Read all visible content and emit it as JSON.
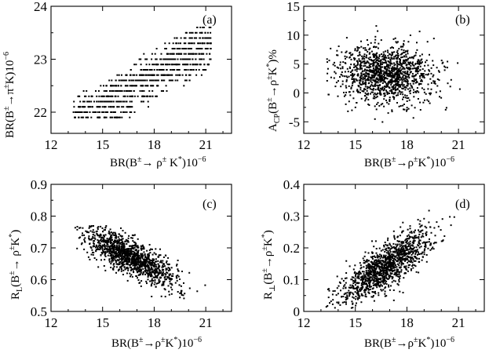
{
  "chart_data": [
    {
      "type": "scatter",
      "panel": "(a)",
      "xlabel": "BR(B^{±}→ρ^{±}K^{*})10^{-6}",
      "ylabel": "BR(B^{±}→π^{±}K)10^{-6}",
      "xlim": [
        12,
        22.5
      ],
      "ylim": [
        21.6,
        24
      ],
      "xticks": [
        12,
        15,
        18,
        21
      ],
      "yticks": [
        22,
        23,
        24
      ],
      "xticklabels": [
        "12",
        "15",
        "18",
        "21"
      ],
      "yticklabels": [
        "22",
        "23",
        "24"
      ],
      "gen": {
        "mode": "grid",
        "n": 900,
        "xmin": 13.3,
        "xmax": 21.3,
        "ystep": 0.1,
        "slope": 0.19,
        "intercept": 19.25,
        "spread": 0.55,
        "ylo": 21.85,
        "yhi": 23.7,
        "seed": 11
      }
    },
    {
      "type": "scatter",
      "panel": "(b)",
      "xlabel": "BR(B^{±}→ρ^{±}K^{*})10^{-6}",
      "ylabel": "A_{CP}(B^{±}→ρ^{±}K^{*})%",
      "xlim": [
        12,
        22.5
      ],
      "ylim": [
        -7,
        15
      ],
      "xticks": [
        12,
        15,
        18,
        21
      ],
      "yticks": [
        -5,
        0,
        5,
        10,
        15
      ],
      "xticklabels": [
        "12",
        "15",
        "18",
        "21"
      ],
      "yticklabels": [
        "-5",
        "0",
        "5",
        "10",
        "15"
      ],
      "gen": {
        "mode": "cloud",
        "n": 1300,
        "xmean": 16.8,
        "xsd": 1.35,
        "slope": -0.15,
        "intercept": 5.6,
        "ysd": 2.6,
        "ylo": -6,
        "yhi": 12,
        "seed": 23
      }
    },
    {
      "type": "scatter",
      "panel": "(c)",
      "xlabel": "BR(B^{±}→ρ^{±}K^{*})10^{-6}",
      "ylabel": "R_{L}(B^{±}→ρ^{±}K^{*})",
      "xlim": [
        12,
        22.5
      ],
      "ylim": [
        0.5,
        0.9
      ],
      "xticks": [
        12,
        15,
        18,
        21
      ],
      "yticks": [
        0.5,
        0.6,
        0.7,
        0.8,
        0.9
      ],
      "xticklabels": [
        "12",
        "15",
        "18",
        "21"
      ],
      "yticklabels": [
        "0.5",
        "0.6",
        "0.7",
        "0.8",
        "0.9"
      ],
      "gen": {
        "mode": "cloud",
        "n": 1300,
        "xmean": 16.6,
        "xsd": 1.3,
        "slope": -0.027,
        "intercept": 1.12,
        "ysd": 0.028,
        "ylo": 0.54,
        "yhi": 0.77,
        "seed": 37
      }
    },
    {
      "type": "scatter",
      "panel": "(d)",
      "xlabel": "BR(B^{±}→ρ^{±}K^{*})10^{-6}",
      "ylabel": "R_{⊥}(B^{±}→ρ^{±}K^{*})",
      "xlim": [
        12,
        22.5
      ],
      "ylim": [
        0,
        0.4
      ],
      "xticks": [
        12,
        15,
        18,
        21
      ],
      "yticks": [
        0,
        0.1,
        0.2,
        0.3,
        0.4
      ],
      "xticklabels": [
        "12",
        "15",
        "18",
        "21"
      ],
      "yticklabels": [
        "0",
        "0.1",
        "0.2",
        "0.3",
        "0.4"
      ],
      "gen": {
        "mode": "cloud",
        "n": 1300,
        "xmean": 16.8,
        "xsd": 1.35,
        "slope": 0.034,
        "intercept": -0.43,
        "ysd": 0.035,
        "ylo": 0.01,
        "yhi": 0.33,
        "seed": 53
      }
    }
  ]
}
